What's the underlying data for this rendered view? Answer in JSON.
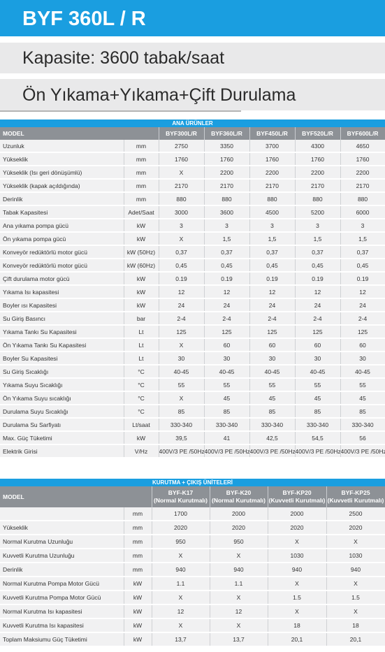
{
  "header": {
    "model_title": "BYF 360L / R",
    "capacity": "Kapasite: 3600 tabak/saat",
    "program": "Ön Yıkama+Yıkama+Çift Durulama"
  },
  "table1": {
    "section_title": "ANA ÜRÜNLER",
    "model_label": "MODEL",
    "columns": [
      "BYF300L/R",
      "BYF360L/R",
      "BYF450L/R",
      "BYF520L/R",
      "BYF600L/R"
    ],
    "rows": [
      {
        "label": "Uzunluk",
        "unit": "mm",
        "values": [
          "2750",
          "3350",
          "3700",
          "4300",
          "4650"
        ]
      },
      {
        "label": "Yükseklik",
        "unit": "mm",
        "values": [
          "1760",
          "1760",
          "1760",
          "1760",
          "1760"
        ]
      },
      {
        "label": "Yükseklik (Isı geri dönüşümlü)",
        "unit": "mm",
        "values": [
          "X",
          "2200",
          "2200",
          "2200",
          "2200"
        ]
      },
      {
        "label": "Yükseklik (kapak açıldığında)",
        "unit": "mm",
        "values": [
          "2170",
          "2170",
          "2170",
          "2170",
          "2170"
        ]
      },
      {
        "label": "Derinlik",
        "unit": "mm",
        "values": [
          "880",
          "880",
          "880",
          "880",
          "880"
        ]
      },
      {
        "label": "Tabak Kapasitesi",
        "unit": "Adet/Saat",
        "values": [
          "3000",
          "3600",
          "4500",
          "5200",
          "6000"
        ]
      },
      {
        "label": "Ana yıkama pompa gücü",
        "unit": "kW",
        "values": [
          "3",
          "3",
          "3",
          "3",
          "3"
        ]
      },
      {
        "label": "Ön yıkama pompa gücü",
        "unit": "kW",
        "values": [
          "X",
          "1,5",
          "1,5",
          "1,5",
          "1,5"
        ]
      },
      {
        "label": "Konveyör redüktörlü motor gücü",
        "unit": "kW (50Hz)",
        "values": [
          "0,37",
          "0,37",
          "0,37",
          "0,37",
          "0,37"
        ]
      },
      {
        "label": "Konveyör redüktörlü motor gücü",
        "unit": "kW (60Hz)",
        "values": [
          "0,45",
          "0,45",
          "0,45",
          "0,45",
          "0,45"
        ]
      },
      {
        "label": "Çift durulama motor gücü",
        "unit": "kW",
        "values": [
          "0.19",
          "0.19",
          "0.19",
          "0.19",
          "0.19"
        ]
      },
      {
        "label": "Yıkama Isı kapasitesi",
        "unit": "kW",
        "values": [
          "12",
          "12",
          "12",
          "12",
          "12"
        ]
      },
      {
        "label": "Boyler ısı Kapasitesi",
        "unit": "kW",
        "values": [
          "24",
          "24",
          "24",
          "24",
          "24"
        ]
      },
      {
        "label": "Su Giriş Basıncı",
        "unit": "bar",
        "values": [
          "2-4",
          "2-4",
          "2-4",
          "2-4",
          "2-4"
        ]
      },
      {
        "label": "Yıkama Tankı Su Kapasitesi",
        "unit": "Lt",
        "values": [
          "125",
          "125",
          "125",
          "125",
          "125"
        ]
      },
      {
        "label": "Ön Yıkama Tankı Su Kapasitesi",
        "unit": "Lt",
        "values": [
          "X",
          "60",
          "60",
          "60",
          "60"
        ]
      },
      {
        "label": "Boyler Su Kapasitesi",
        "unit": "Lt",
        "values": [
          "30",
          "30",
          "30",
          "30",
          "30"
        ]
      },
      {
        "label": "Su Giriş Sıcaklığı",
        "unit": "°C",
        "values": [
          "40-45",
          "40-45",
          "40-45",
          "40-45",
          "40-45"
        ]
      },
      {
        "label": "Yıkama Suyu Sıcaklığı",
        "unit": "°C",
        "values": [
          "55",
          "55",
          "55",
          "55",
          "55"
        ]
      },
      {
        "label": "Ön Yıkama Suyu sıcaklığı",
        "unit": "°C",
        "values": [
          "X",
          "45",
          "45",
          "45",
          "45"
        ]
      },
      {
        "label": "Durulama Suyu Sıcaklığı",
        "unit": "°C",
        "values": [
          "85",
          "85",
          "85",
          "85",
          "85"
        ]
      },
      {
        "label": "Durulama Su Sarfiyatı",
        "unit": "Lt/saat",
        "values": [
          "330-340",
          "330-340",
          "330-340",
          "330-340",
          "330-340"
        ]
      },
      {
        "label": "Max. Güç Tüketimi",
        "unit": "kW",
        "values": [
          "39,5",
          "41",
          "42,5",
          "54,5",
          "56"
        ]
      },
      {
        "label": "Elektrik Girisi",
        "unit": "V/Hz",
        "values": [
          "400V/3 PE /50Hz",
          "400V/3 PE /50Hz",
          "400V/3 PE /50Hz",
          "400V/3 PE /50Hz",
          "400V/3 PE /50Hz"
        ]
      }
    ]
  },
  "table2": {
    "section_title": "KURUTMA + ÇIKIŞ ÜNİTELERİ",
    "model_label": "MODEL",
    "columns": [
      {
        "name": "BYF-K17",
        "sub": "(Normal Kurutmalı)"
      },
      {
        "name": "BYF-K20",
        "sub": "(Normal Kurutmalı)"
      },
      {
        "name": "BYF-KP20",
        "sub": "(Kuvvetli Kurutmalı)"
      },
      {
        "name": "BYF-KP25",
        "sub": "(Kuvvetli Kurutmalı)"
      }
    ],
    "rows": [
      {
        "label": "",
        "unit": "mm",
        "values": [
          "1700",
          "2000",
          "2000",
          "2500"
        ]
      },
      {
        "label": "Yükseklik",
        "unit": "mm",
        "values": [
          "2020",
          "2020",
          "2020",
          "2020"
        ]
      },
      {
        "label": "Normal Kurutma Uzunluğu",
        "unit": "mm",
        "values": [
          "950",
          "950",
          "X",
          "X"
        ]
      },
      {
        "label": "Kuvvetli Kurutma Uzunluğu",
        "unit": "mm",
        "values": [
          "X",
          "X",
          "1030",
          "1030"
        ]
      },
      {
        "label": "Derinlik",
        "unit": "mm",
        "values": [
          "940",
          "940",
          "940",
          "940"
        ]
      },
      {
        "label": "Normal Kurutma Pompa Motor Gücü",
        "unit": "kW",
        "values": [
          "1.1",
          "1.1",
          "X",
          "X"
        ]
      },
      {
        "label": "Kuvvetli Kurutma Pompa Motor Gücü",
        "unit": "kW",
        "values": [
          "X",
          "X",
          "1.5",
          "1.5"
        ]
      },
      {
        "label": "Normal Kurutma Isı kapasitesi",
        "unit": "kW",
        "values": [
          "12",
          "12",
          "X",
          "X"
        ]
      },
      {
        "label": "Kuvvetli Kurutma Isı kapasitesi",
        "unit": "kW",
        "values": [
          "X",
          "X",
          "18",
          "18"
        ]
      },
      {
        "label": "Toplam Maksiumu Güç Tüketimi",
        "unit": "kW",
        "values": [
          "13,7",
          "13,7",
          "20,1",
          "20,1"
        ]
      }
    ]
  }
}
